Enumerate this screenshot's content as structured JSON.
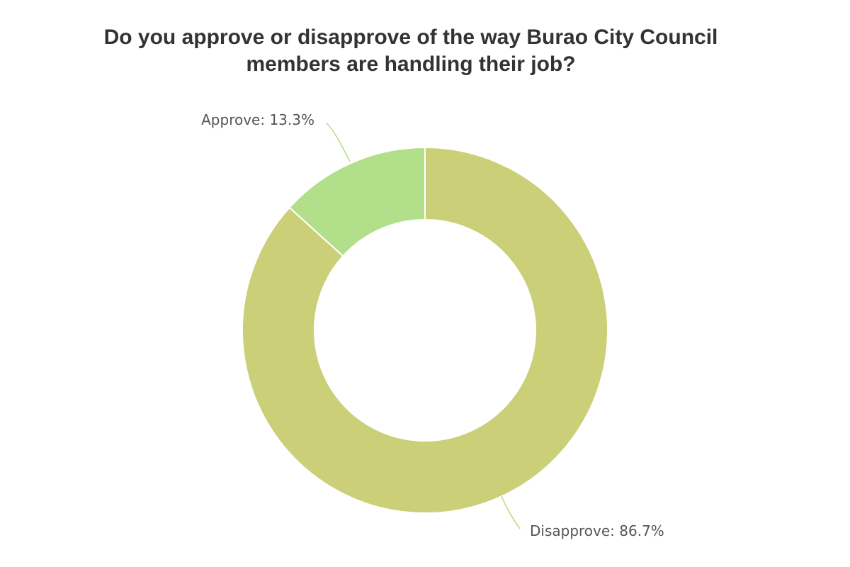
{
  "chart_data": {
    "type": "pie",
    "variant": "donut",
    "title": "Do you approve or disapprove of the way Burao City Council members are handling their job?",
    "slices": [
      {
        "name": "Approve",
        "value": 13.3,
        "label": "Approve: 13.3%",
        "color": "#b2df8a"
      },
      {
        "name": "Disapprove",
        "value": 86.7,
        "label": "Disapprove: 86.7%",
        "color": "#cbcf78"
      }
    ],
    "legend": "none",
    "data_labels": "outside"
  }
}
